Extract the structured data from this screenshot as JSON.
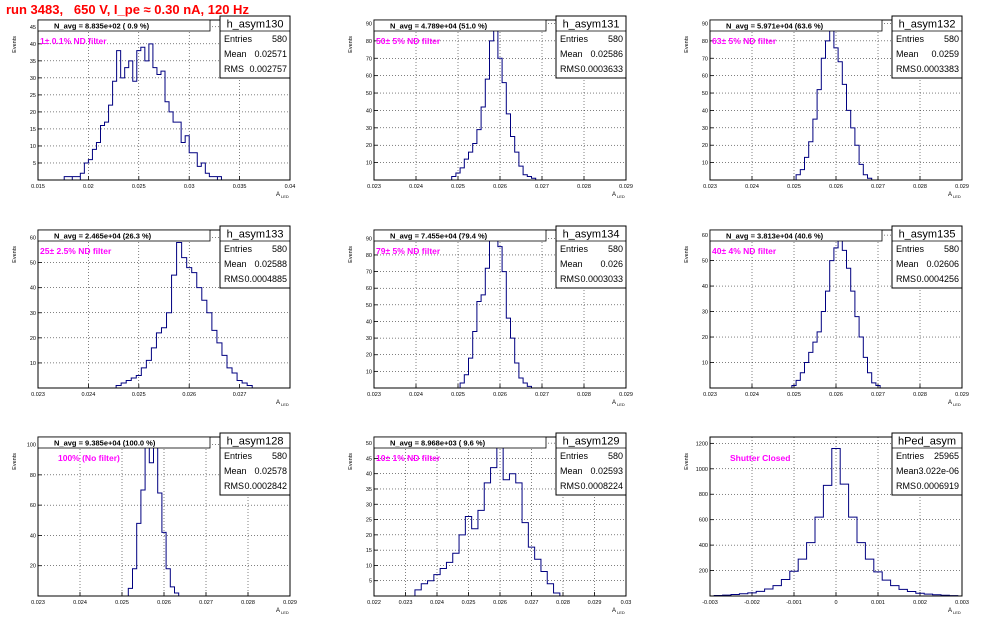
{
  "header": {
    "title": "run 3483,   650 V, I_pe ≈ 0.30 nA, 120 Hz"
  },
  "common": {
    "yaxis_label": "Events",
    "xaxis_label": "A",
    "xaxis_sub": "LED",
    "stats_labels": [
      "Entries",
      "Mean",
      "RMS"
    ]
  },
  "colors": {
    "histogram": "#000080",
    "filter_text": "#ff00ff",
    "title": "#ff0000",
    "grid": "#000000"
  },
  "chart_data": [
    {
      "type": "histogram",
      "name": "h_asym130",
      "navg": "N_avg = 8.835e+02 ( 0.9 %)",
      "filter": "1± 0.1% ND filter",
      "entries": "580",
      "mean": "0.02571",
      "rms": "0.002757",
      "xlim": [
        0.015,
        0.04
      ],
      "xticks": [
        "0.015",
        "0.02",
        "0.025",
        "0.03",
        "0.035",
        "0.04"
      ],
      "ylim": [
        0,
        47
      ],
      "yticks": [
        "5",
        "10",
        "15",
        "20",
        "25",
        "30",
        "35",
        "40",
        "45"
      ],
      "bins": [
        [
          0.0178,
          1
        ],
        [
          0.0186,
          1
        ],
        [
          0.0194,
          2
        ],
        [
          0.0198,
          5
        ],
        [
          0.0202,
          6
        ],
        [
          0.0206,
          9
        ],
        [
          0.021,
          11
        ],
        [
          0.0214,
          16
        ],
        [
          0.0218,
          17
        ],
        [
          0.0222,
          22
        ],
        [
          0.0226,
          29
        ],
        [
          0.023,
          38
        ],
        [
          0.0234,
          30
        ],
        [
          0.0238,
          33
        ],
        [
          0.0242,
          35
        ],
        [
          0.0246,
          29
        ],
        [
          0.025,
          38
        ],
        [
          0.0254,
          39
        ],
        [
          0.0258,
          35
        ],
        [
          0.0262,
          40
        ],
        [
          0.0266,
          33
        ],
        [
          0.027,
          31
        ],
        [
          0.0274,
          32
        ],
        [
          0.0278,
          23
        ],
        [
          0.0282,
          20
        ],
        [
          0.0286,
          17
        ],
        [
          0.029,
          17
        ],
        [
          0.0294,
          11
        ],
        [
          0.0298,
          13
        ],
        [
          0.0302,
          8
        ],
        [
          0.0306,
          8
        ],
        [
          0.031,
          4
        ],
        [
          0.0314,
          5
        ],
        [
          0.0318,
          2
        ],
        [
          0.0322,
          1
        ],
        [
          0.033,
          1
        ]
      ]
    },
    {
      "type": "histogram",
      "name": "h_asym131",
      "navg": "N_avg = 4.789e+04 (51.0 %)",
      "filter": "50± 5% ND filter",
      "entries": "580",
      "mean": "0.02586",
      "rms": "0.0003633",
      "xlim": [
        0.023,
        0.029
      ],
      "xticks": [
        "0.023",
        "0.024",
        "0.025",
        "0.026",
        "0.027",
        "0.028",
        "0.029"
      ],
      "ylim": [
        0,
        92
      ],
      "yticks": [
        "10",
        "20",
        "30",
        "40",
        "50",
        "60",
        "70",
        "80",
        "90"
      ],
      "bins": [
        [
          0.0249,
          2
        ],
        [
          0.025,
          4
        ],
        [
          0.0251,
          7
        ],
        [
          0.0252,
          12
        ],
        [
          0.0253,
          16
        ],
        [
          0.0254,
          21
        ],
        [
          0.0255,
          29
        ],
        [
          0.0256,
          42
        ],
        [
          0.0257,
          58
        ],
        [
          0.0258,
          80
        ],
        [
          0.0259,
          92
        ],
        [
          0.026,
          70
        ],
        [
          0.0261,
          56
        ],
        [
          0.0262,
          38
        ],
        [
          0.0263,
          25
        ],
        [
          0.0264,
          16
        ],
        [
          0.0265,
          8
        ],
        [
          0.0266,
          3
        ],
        [
          0.0267,
          2
        ],
        [
          0.0268,
          1
        ]
      ]
    },
    {
      "type": "histogram",
      "name": "h_asym132",
      "navg": "N_avg = 5.971e+04 (63.6 %)",
      "filter": "63± 5% ND filter",
      "entries": "580",
      "mean": "0.0259",
      "rms": "0.0003383",
      "xlim": [
        0.023,
        0.029
      ],
      "xticks": [
        "0.023",
        "0.024",
        "0.025",
        "0.026",
        "0.027",
        "0.028",
        "0.029"
      ],
      "ylim": [
        0,
        92
      ],
      "yticks": [
        "10",
        "20",
        "30",
        "40",
        "50",
        "60",
        "70",
        "80",
        "90"
      ],
      "bins": [
        [
          0.0251,
          3
        ],
        [
          0.0252,
          6
        ],
        [
          0.0253,
          13
        ],
        [
          0.0254,
          22
        ],
        [
          0.0255,
          35
        ],
        [
          0.0256,
          52
        ],
        [
          0.0257,
          70
        ],
        [
          0.0258,
          80
        ],
        [
          0.0259,
          88
        ],
        [
          0.026,
          76
        ],
        [
          0.0261,
          68
        ],
        [
          0.0262,
          55
        ],
        [
          0.0263,
          40
        ],
        [
          0.0264,
          30
        ],
        [
          0.0265,
          20
        ],
        [
          0.0266,
          9
        ],
        [
          0.0267,
          3
        ],
        [
          0.0268,
          1
        ]
      ]
    },
    {
      "type": "histogram",
      "name": "h_asym133",
      "navg": "N_avg = 2.465e+04 (26.3 %)",
      "filter": "25± 2.5% ND filter",
      "entries": "580",
      "mean": "0.02588",
      "rms": "0.0004885",
      "xlim": [
        0.023,
        0.028
      ],
      "xticks": [
        "0.023",
        "0.024",
        "0.025",
        "0.026",
        "0.027"
      ],
      "ylim": [
        0,
        63
      ],
      "yticks": [
        "10",
        "20",
        "30",
        "40",
        "50",
        "60"
      ],
      "bins": [
        [
          0.0246,
          1
        ],
        [
          0.0247,
          2
        ],
        [
          0.0248,
          3
        ],
        [
          0.0249,
          4
        ],
        [
          0.025,
          5
        ],
        [
          0.0251,
          8
        ],
        [
          0.0252,
          11
        ],
        [
          0.0253,
          16
        ],
        [
          0.0254,
          22
        ],
        [
          0.0255,
          24
        ],
        [
          0.0256,
          30
        ],
        [
          0.0257,
          45
        ],
        [
          0.0258,
          58
        ],
        [
          0.0259,
          52
        ],
        [
          0.026,
          48
        ],
        [
          0.0261,
          46
        ],
        [
          0.0262,
          40
        ],
        [
          0.0263,
          35
        ],
        [
          0.0264,
          30
        ],
        [
          0.0265,
          23
        ],
        [
          0.0266,
          18
        ],
        [
          0.0267,
          13
        ],
        [
          0.0268,
          8
        ],
        [
          0.0269,
          6
        ],
        [
          0.027,
          3
        ],
        [
          0.0271,
          2
        ],
        [
          0.0272,
          1
        ]
      ]
    },
    {
      "type": "histogram",
      "name": "h_asym134",
      "navg": "N_avg = 7.455e+04 (79.4 %)",
      "filter": "79± 5% ND filter",
      "entries": "580",
      "mean": "0.026",
      "rms": "0.0003033",
      "xlim": [
        0.023,
        0.029
      ],
      "xticks": [
        "0.023",
        "0.024",
        "0.025",
        "0.026",
        "0.027",
        "0.028",
        "0.029"
      ],
      "ylim": [
        0,
        95
      ],
      "yticks": [
        "10",
        "20",
        "30",
        "40",
        "50",
        "60",
        "70",
        "80",
        "90"
      ],
      "bins": [
        [
          0.0251,
          3
        ],
        [
          0.0252,
          8
        ],
        [
          0.0253,
          18
        ],
        [
          0.0254,
          34
        ],
        [
          0.0255,
          52
        ],
        [
          0.0256,
          56
        ],
        [
          0.0257,
          72
        ],
        [
          0.0258,
          90
        ],
        [
          0.0259,
          92
        ],
        [
          0.026,
          85
        ],
        [
          0.0261,
          70
        ],
        [
          0.0262,
          42
        ],
        [
          0.0263,
          30
        ],
        [
          0.0264,
          15
        ],
        [
          0.0265,
          6
        ],
        [
          0.0266,
          3
        ],
        [
          0.0267,
          1
        ]
      ]
    },
    {
      "type": "histogram",
      "name": "h_asym135",
      "navg": "N_avg = 3.813e+04 (40.6 %)",
      "filter": "40± 4% ND filter",
      "entries": "580",
      "mean": "0.02606",
      "rms": "0.0004256",
      "xlim": [
        0.023,
        0.029
      ],
      "xticks": [
        "0.023",
        "0.024",
        "0.025",
        "0.026",
        "0.027",
        "0.028",
        "0.029"
      ],
      "ylim": [
        0,
        62
      ],
      "yticks": [
        "10",
        "20",
        "30",
        "40",
        "50",
        "60"
      ],
      "bins": [
        [
          0.025,
          1
        ],
        [
          0.0251,
          3
        ],
        [
          0.0252,
          6
        ],
        [
          0.0253,
          10
        ],
        [
          0.0254,
          14
        ],
        [
          0.0255,
          18
        ],
        [
          0.0256,
          22
        ],
        [
          0.0257,
          30
        ],
        [
          0.0258,
          38
        ],
        [
          0.0259,
          50
        ],
        [
          0.026,
          55
        ],
        [
          0.0261,
          62
        ],
        [
          0.0262,
          54
        ],
        [
          0.0263,
          47
        ],
        [
          0.0264,
          38
        ],
        [
          0.0265,
          28
        ],
        [
          0.0266,
          20
        ],
        [
          0.0267,
          12
        ],
        [
          0.0268,
          6
        ],
        [
          0.0269,
          2
        ],
        [
          0.027,
          1
        ]
      ]
    },
    {
      "type": "histogram",
      "name": "h_asym128",
      "navg": "N_avg = 9.385e+04 (100.0 %)",
      "filter": "100% (No filter)",
      "entries": "580",
      "mean": "0.02578",
      "rms": "0.0002842",
      "xlim": [
        0.023,
        0.029
      ],
      "xticks": [
        "0.023",
        "0.024",
        "0.025",
        "0.026",
        "0.027",
        "0.028",
        "0.029"
      ],
      "ylim": [
        0,
        105
      ],
      "yticks": [
        "20",
        "40",
        "60",
        "80",
        "100"
      ],
      "bins": [
        [
          0.0252,
          5
        ],
        [
          0.0253,
          18
        ],
        [
          0.0254,
          48
        ],
        [
          0.0255,
          70
        ],
        [
          0.0256,
          105
        ],
        [
          0.0257,
          88
        ],
        [
          0.0258,
          105
        ],
        [
          0.0259,
          68
        ],
        [
          0.026,
          42
        ],
        [
          0.0261,
          18
        ],
        [
          0.0262,
          6
        ],
        [
          0.0263,
          2
        ]
      ]
    },
    {
      "type": "histogram",
      "name": "h_asym129",
      "navg": "N_avg = 8.968e+03 ( 9.6 %)",
      "filter": "10± 1% ND filter",
      "entries": "580",
      "mean": "0.02593",
      "rms": "0.0008224",
      "xlim": [
        0.022,
        0.03
      ],
      "xticks": [
        "0.022",
        "0.023",
        "0.024",
        "0.025",
        "0.026",
        "0.027",
        "0.028",
        "0.029",
        "0.03"
      ],
      "ylim": [
        0,
        52
      ],
      "yticks": [
        "5",
        "10",
        "15",
        "20",
        "25",
        "30",
        "35",
        "40",
        "45",
        "50"
      ],
      "bins": [
        [
          0.0234,
          2
        ],
        [
          0.0236,
          4
        ],
        [
          0.0238,
          5
        ],
        [
          0.024,
          7
        ],
        [
          0.0242,
          9
        ],
        [
          0.0244,
          11
        ],
        [
          0.0246,
          14
        ],
        [
          0.0248,
          20
        ],
        [
          0.025,
          26
        ],
        [
          0.0252,
          22
        ],
        [
          0.0254,
          28
        ],
        [
          0.0256,
          37
        ],
        [
          0.0258,
          42
        ],
        [
          0.026,
          52
        ],
        [
          0.0262,
          38
        ],
        [
          0.0264,
          40
        ],
        [
          0.0266,
          37
        ],
        [
          0.0268,
          24
        ],
        [
          0.027,
          16
        ],
        [
          0.0272,
          12
        ],
        [
          0.0274,
          8
        ],
        [
          0.0276,
          4
        ],
        [
          0.0278,
          1
        ]
      ]
    },
    {
      "type": "histogram",
      "name": "hPed_asym",
      "navg": "",
      "filter": "Shutter Closed",
      "entries": "25965",
      "mean": "3.022e-06",
      "rms": "0.0006919",
      "xlim": [
        -0.003,
        0.003
      ],
      "xticks": [
        "-0.003",
        "-0.002",
        "-0.001",
        "0",
        "0.001",
        "0.002",
        "0.003"
      ],
      "ylim": [
        0,
        1250
      ],
      "yticks": [
        "200",
        "400",
        "600",
        "800",
        "1000",
        "1200"
      ],
      "bins": [
        [
          -0.0028,
          4
        ],
        [
          -0.0026,
          7
        ],
        [
          -0.0024,
          12
        ],
        [
          -0.0022,
          18
        ],
        [
          -0.002,
          25
        ],
        [
          -0.0018,
          36
        ],
        [
          -0.0016,
          55
        ],
        [
          -0.0014,
          82
        ],
        [
          -0.0012,
          130
        ],
        [
          -0.001,
          195
        ],
        [
          -0.0008,
          290
        ],
        [
          -0.0006,
          420
        ],
        [
          -0.0004,
          620
        ],
        [
          -0.0002,
          870
        ],
        [
          0,
          1160
        ],
        [
          0.0002,
          880
        ],
        [
          0.0004,
          620
        ],
        [
          0.0006,
          420
        ],
        [
          0.0008,
          290
        ],
        [
          0.001,
          190
        ],
        [
          0.0012,
          125
        ],
        [
          0.0014,
          82
        ],
        [
          0.0016,
          52
        ],
        [
          0.0018,
          35
        ],
        [
          0.002,
          22
        ],
        [
          0.0022,
          15
        ],
        [
          0.0024,
          10
        ],
        [
          0.0026,
          6
        ],
        [
          0.0028,
          3
        ]
      ]
    }
  ]
}
